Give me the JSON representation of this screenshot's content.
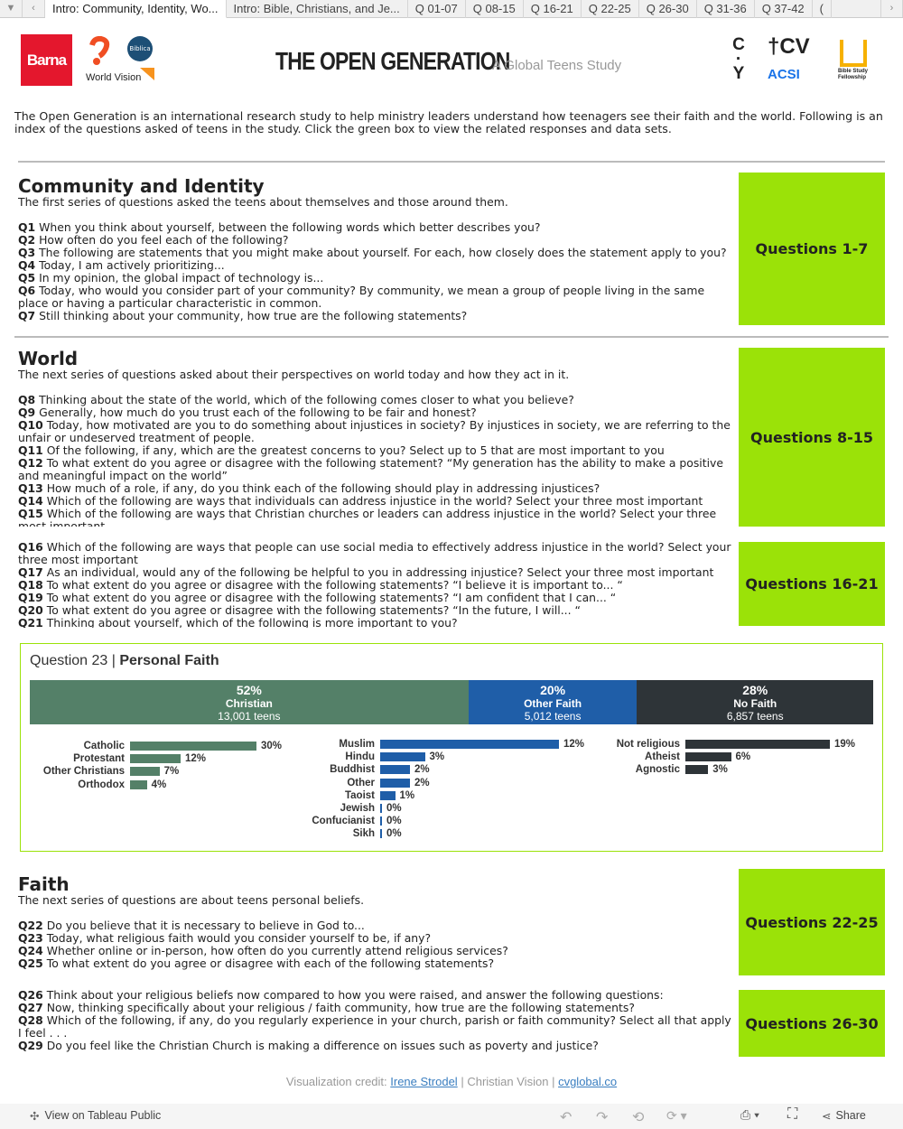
{
  "tabs": {
    "items": [
      "Intro: Community, Identity, Wo...",
      "Intro: Bible, Christians, and Je...",
      "Q 01-07",
      "Q 08-15",
      "Q 16-21",
      "Q 22-25",
      "Q 26-30",
      "Q 31-36",
      "Q 37-42",
      "("
    ],
    "active": 0
  },
  "header": {
    "logos": [
      "Barna",
      "World Vision",
      "Biblica",
      "CVY",
      "CV",
      "ACSI",
      "Bible Study Fellowship"
    ],
    "title": "THE OPEN GENERATION",
    "subtitle": "A Global Teens Study"
  },
  "intro": "The Open Generation is an international research study to help ministry leaders understand how teenagers see their faith and the world. Following is an index of the questions asked of teens in the study. Click the green box to view the related responses and data sets.",
  "sections": [
    {
      "title": "Community and Identity",
      "desc": "The first series of questions asked the teens about themselves and those around them.",
      "button": "Questions 1-7",
      "questions": [
        [
          "Q1",
          "When you think about yourself, between the following words which better describes you?"
        ],
        [
          "Q2",
          "How often do you feel each of the following?"
        ],
        [
          "Q3",
          "The following are statements that you might make about yourself. For each, how closely does the statement apply to you?"
        ],
        [
          "Q4",
          "Today, I am actively prioritizing..."
        ],
        [
          "Q5",
          "In my opinion, the global impact of technology is..."
        ],
        [
          "Q6",
          "Today, who would you consider part of your community? By community, we mean a group of people living in the same place or having a particular characteristic in common."
        ],
        [
          "Q7",
          "Still thinking about your community, how true are the following statements?"
        ]
      ]
    },
    {
      "title": "World",
      "desc": "The next series of questions asked about their perspectives on world today and how they act in it.",
      "button": "Questions 8-15",
      "questions": [
        [
          "Q8",
          "Thinking about the state of the world, which of the following comes closer to what you believe?"
        ],
        [
          "Q9",
          "Generally, how much do you trust each of the following to be fair and honest?"
        ],
        [
          "Q10",
          "Today, how motivated are you to do something about injustices in society? By injustices in society, we are referring to the unfair or undeserved treatment of people."
        ],
        [
          "Q11",
          "Of the following, if any, which are the greatest concerns to you? Select up to 5 that are most important to you"
        ],
        [
          "Q12",
          "To what extent do you agree or disagree with the following statement? “My generation has the ability to make a positive and meaningful impact on the world”"
        ],
        [
          "Q13",
          "How much of a role, if any, do you think each of the following should play in addressing injustices?"
        ],
        [
          "Q14",
          "Which of the following are ways that individuals can address injustice in the world? Select your three most important"
        ],
        [
          "Q15",
          "Which of the following are ways that Christian churches or leaders can address injustice in the world? Select your three most important"
        ]
      ]
    },
    {
      "title": "",
      "desc": "",
      "button": "Questions 16-21",
      "questions": [
        [
          "Q16",
          "Which of the following are ways that people can use social media to effectively address injustice in the world? Select your three most important"
        ],
        [
          "Q17",
          "As an individual, would any of the following be helpful to you in addressing injustice? Select your three most important"
        ],
        [
          "Q18",
          "To what extent do you agree or disagree with the following statements? “I believe it is important to... “"
        ],
        [
          "Q19",
          "To what extent do you agree or disagree with the following statements? “I am confident that I can... “"
        ],
        [
          "Q20",
          "To what extent do you agree or disagree with the following statements? “In the future, I will... “"
        ],
        [
          "Q21",
          "Thinking about yourself, which of the following is more important to you?"
        ]
      ]
    },
    {
      "title": "Faith",
      "desc": "The next series of questions are about teens personal beliefs.",
      "button": "Questions 22-25",
      "questions": [
        [
          "Q22",
          "Do you believe that it is necessary to believe in God to..."
        ],
        [
          "Q23",
          "Today, what religious faith would you consider yourself to be, if any?"
        ],
        [
          "Q24",
          "Whether online or in-person, how often do you currently attend religious services?"
        ],
        [
          "Q25",
          "To what extent do you agree or disagree with each of the following statements?"
        ]
      ]
    },
    {
      "title": "",
      "desc": "",
      "button": "Questions 26-30",
      "questions": [
        [
          "Q26",
          "Think about your religious beliefs now compared to how you were raised, and answer the following questions:"
        ],
        [
          "Q27",
          "Now, thinking specifically about your religious / faith community, how true are the following statements?"
        ],
        [
          "Q28",
          "Which of the following, if any, do you regularly experience in your church, parish or faith community? Select all that apply I feel . . ."
        ],
        [
          "Q29",
          "Do you feel like the Christian Church is making a difference on issues such as poverty and justice?"
        ]
      ]
    }
  ],
  "chart": {
    "title_prefix": "Question 23",
    "title_sep": "|",
    "title": "Personal Faith",
    "chart_data": {
      "type": "bar",
      "stack": [
        {
          "pct": "52%",
          "value": 52,
          "name": "Christian",
          "count": "13,001 teens",
          "color": "#548068"
        },
        {
          "pct": "20%",
          "value": 20,
          "name": "Other Faith",
          "count": "5,012 teens",
          "color": "#1f5ea8"
        },
        {
          "pct": "28%",
          "value": 28,
          "name": "No Faith",
          "count": "6,857 teens",
          "color": "#2e3438"
        }
      ],
      "groups": [
        {
          "color": "#548068",
          "categories": [
            "Catholic",
            "Protestant",
            "Other Christians",
            "Orthodox"
          ],
          "values": [
            30,
            12,
            7,
            4
          ]
        },
        {
          "color": "#1f5ea8",
          "categories": [
            "Muslim",
            "Hindu",
            "Buddhist",
            "Other",
            "Taoist",
            "Jewish",
            "Confucianist",
            "Sikh"
          ],
          "values": [
            12,
            3,
            2,
            2,
            1,
            0,
            0,
            0
          ]
        },
        {
          "color": "#2e3438",
          "categories": [
            "Not religious",
            "Atheist",
            "Agnostic"
          ],
          "values": [
            19,
            6,
            3
          ]
        }
      ]
    }
  },
  "credit": {
    "prefix": "Visualization credit:",
    "author": "Irene Strodel",
    "sep1": "|",
    "org": "Christian Vision",
    "sep2": "|",
    "link": "cvglobal.co"
  },
  "toolbar": {
    "view": "View on Tableau Public",
    "share": "Share"
  },
  "colors": {
    "accent": "#9be208"
  }
}
